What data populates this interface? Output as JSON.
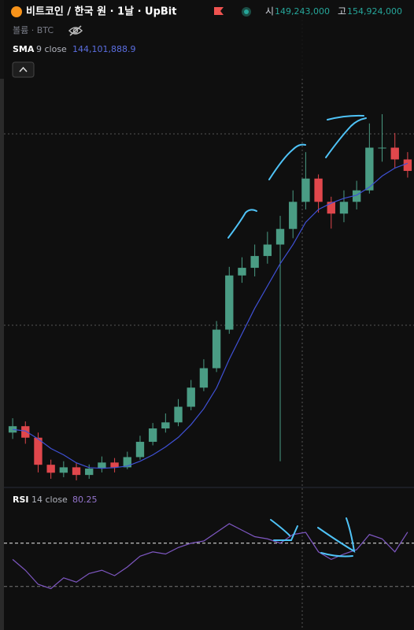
{
  "header": {
    "symbol": "비트코인 / 한국 원 · 1날 · UpBit",
    "open_label": "시",
    "open_value": "149,243,000",
    "high_label": "고",
    "high_value": "154,924,000",
    "volume_label": "볼륨 · BTC"
  },
  "chart_data": [
    {
      "type": "candlestick",
      "up_color": "#4a9c84",
      "down_color": "#e0474c",
      "open": [
        55000000,
        57000000,
        53400000,
        44900000,
        42400000,
        44100000,
        41700000,
        43700000,
        45600000,
        44100000,
        47300000,
        52100000,
        56300000,
        58200000,
        63100000,
        69100000,
        75200000,
        87300000,
        104300000,
        106700000,
        110400000,
        114000000,
        118900000,
        127400000,
        134700000,
        127400000,
        123700000,
        127400000,
        131000000,
        144400000,
        144400000,
        140700000
      ],
      "high": [
        59500000,
        58500000,
        55000000,
        46500000,
        46000000,
        45500000,
        45000000,
        47500000,
        47000000,
        49000000,
        54000000,
        58000000,
        61000000,
        65500000,
        71500000,
        78000000,
        90000000,
        107000000,
        110000000,
        114000000,
        118000000,
        123000000,
        131000000,
        143000000,
        136000000,
        129000000,
        131000000,
        134000000,
        152000000,
        154900000,
        149000000,
        143000000
      ],
      "low": [
        53000000,
        51500000,
        42500000,
        40500000,
        41000000,
        40000000,
        40500000,
        42500000,
        42500000,
        43500000,
        46500000,
        51000000,
        55000000,
        57000000,
        62000000,
        68000000,
        74000000,
        86000000,
        102000000,
        104000000,
        108000000,
        46000000,
        116000000,
        125000000,
        124000000,
        119000000,
        121000000,
        125000000,
        130000000,
        140000000,
        138000000,
        135000000
      ],
      "close": [
        57000000,
        53400000,
        44900000,
        42400000,
        44100000,
        41700000,
        43700000,
        45600000,
        44100000,
        47300000,
        52100000,
        56300000,
        58200000,
        63100000,
        69100000,
        75200000,
        87300000,
        104300000,
        106700000,
        110400000,
        114000000,
        118900000,
        127400000,
        134700000,
        127400000,
        123700000,
        127400000,
        131000000,
        144400000,
        144400000,
        140700000,
        137100000
      ],
      "indicator": {
        "name": "SMA",
        "params": "9 close",
        "value": "144,101,888.9",
        "color": "#3f51d6",
        "values": [
          56000000,
          55500000,
          53000000,
          50000000,
          48000000,
          45500000,
          44000000,
          43800000,
          44000000,
          44500000,
          46000000,
          48000000,
          50500000,
          53500000,
          57500000,
          62500000,
          69000000,
          78000000,
          86000000,
          94000000,
          101000000,
          108000000,
          114000000,
          121000000,
          125000000,
          127000000,
          128500000,
          129500000,
          132000000,
          135500000,
          138000000,
          139500000
        ]
      }
    },
    {
      "type": "line",
      "indicator": {
        "name": "RSI",
        "params": "14 close",
        "value": "80.25",
        "color": "#7e57c2"
      },
      "values": [
        55,
        45,
        32,
        28,
        38,
        34,
        42,
        45,
        40,
        48,
        58,
        62,
        60,
        66,
        70,
        72,
        80,
        88,
        82,
        76,
        74,
        70,
        78,
        80,
        62,
        55,
        60,
        64,
        78,
        74,
        62,
        80.25
      ],
      "levels": [
        70,
        30
      ]
    }
  ]
}
